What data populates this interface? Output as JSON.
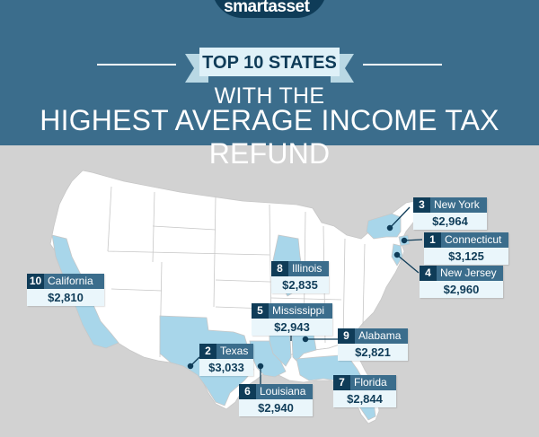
{
  "brand": "smartasset",
  "brand_mark": "™",
  "title": {
    "line1": "TOP 10 STATES",
    "line2": "WITH THE",
    "line3": "HIGHEST AVERAGE INCOME TAX REFUND"
  },
  "colors": {
    "header": "#3b6d8c",
    "dark_navy": "#0f3c58",
    "ribbon": "#dff1f8",
    "highlight_state": "#a8d6ea",
    "map_state": "#ffffff",
    "background": "#d2d2d2"
  },
  "states": [
    {
      "rank": "1",
      "name": "Connecticut",
      "value": "$3,125"
    },
    {
      "rank": "2",
      "name": "Texas",
      "value": "$3,033"
    },
    {
      "rank": "3",
      "name": "New York",
      "value": "$2,964"
    },
    {
      "rank": "4",
      "name": "New Jersey",
      "value": "$2,960"
    },
    {
      "rank": "5",
      "name": "Mississippi",
      "value": "$2,943"
    },
    {
      "rank": "6",
      "name": "Louisiana",
      "value": "$2,940"
    },
    {
      "rank": "7",
      "name": "Florida",
      "value": "$2,844"
    },
    {
      "rank": "8",
      "name": "Illinois",
      "value": "$2,835"
    },
    {
      "rank": "9",
      "name": "Alabama",
      "value": "$2,821"
    },
    {
      "rank": "10",
      "name": "California",
      "value": "$2,810"
    }
  ]
}
